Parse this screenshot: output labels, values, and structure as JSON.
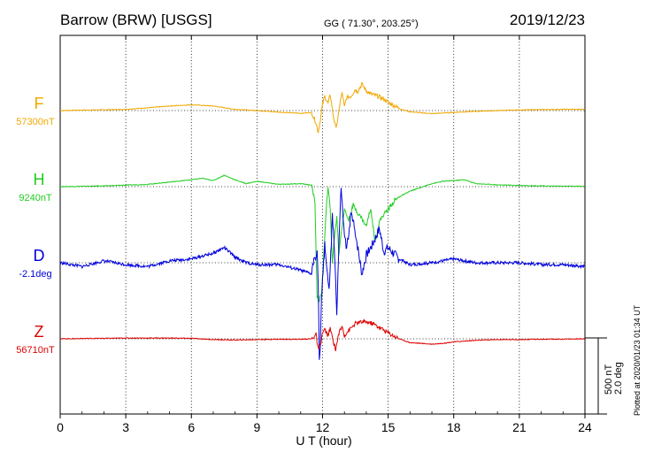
{
  "chart_data": {
    "type": "line",
    "title": "Barrow (BRW)  [USGS]",
    "coordinates": "GG ( 71.30°, 203.25°)",
    "date": "2019/12/23",
    "xlabel": "U T (hour)",
    "xlim": [
      0,
      24
    ],
    "xticks": [
      0,
      3,
      6,
      9,
      12,
      15,
      18,
      21,
      24
    ],
    "xtick_labels": [
      "0",
      "3",
      "6",
      "9",
      "12",
      "15",
      "18",
      "21",
      "24"
    ],
    "grid": true,
    "scale": {
      "line1": "500 nT",
      "line2": "2.0 deg"
    },
    "plotted_note": "Plotted at 2020/01/23 01:34 UT",
    "series": [
      {
        "name": "F",
        "baseline_label": "57300nT",
        "color": "#f0a800",
        "unit": "nT",
        "points": [
          [
            0.0,
            0
          ],
          [
            1.0,
            3
          ],
          [
            2.0,
            5
          ],
          [
            3.0,
            8
          ],
          [
            4.0,
            18
          ],
          [
            5.0,
            30
          ],
          [
            6.0,
            38
          ],
          [
            7.0,
            30
          ],
          [
            8.0,
            8
          ],
          [
            9.0,
            0
          ],
          [
            10.0,
            -10
          ],
          [
            11.0,
            -18
          ],
          [
            11.5,
            -12
          ],
          [
            11.7,
            -80
          ],
          [
            11.8,
            -140
          ],
          [
            11.9,
            -60
          ],
          [
            12.0,
            40
          ],
          [
            12.1,
            95
          ],
          [
            12.25,
            45
          ],
          [
            12.35,
            105
          ],
          [
            12.5,
            -40
          ],
          [
            12.6,
            -110
          ],
          [
            12.7,
            -60
          ],
          [
            12.8,
            55
          ],
          [
            12.9,
            115
          ],
          [
            13.0,
            20
          ],
          [
            13.1,
            85
          ],
          [
            13.3,
            95
          ],
          [
            13.5,
            140
          ],
          [
            13.6,
            125
          ],
          [
            13.8,
            175
          ],
          [
            14.0,
            130
          ],
          [
            14.2,
            110
          ],
          [
            14.4,
            100
          ],
          [
            14.6,
            90
          ],
          [
            14.8,
            75
          ],
          [
            15.0,
            55
          ],
          [
            15.3,
            30
          ],
          [
            15.6,
            8
          ],
          [
            16.0,
            -8
          ],
          [
            17.0,
            -20
          ],
          [
            18.0,
            -12
          ],
          [
            19.0,
            -5
          ],
          [
            20.0,
            0
          ],
          [
            21.0,
            4
          ],
          [
            22.0,
            6
          ],
          [
            23.0,
            8
          ],
          [
            24.0,
            8
          ]
        ]
      },
      {
        "name": "H",
        "baseline_label": "9240nT",
        "color": "#22cc22",
        "unit": "nT",
        "points": [
          [
            0.0,
            0
          ],
          [
            1.0,
            2
          ],
          [
            2.0,
            5
          ],
          [
            3.0,
            10
          ],
          [
            4.0,
            15
          ],
          [
            5.0,
            30
          ],
          [
            6.0,
            45
          ],
          [
            6.5,
            55
          ],
          [
            7.0,
            40
          ],
          [
            7.5,
            75
          ],
          [
            8.0,
            45
          ],
          [
            8.5,
            20
          ],
          [
            9.0,
            35
          ],
          [
            10.0,
            15
          ],
          [
            11.0,
            20
          ],
          [
            11.5,
            10
          ],
          [
            11.65,
            -100
          ],
          [
            11.75,
            -720
          ],
          [
            11.85,
            -760
          ],
          [
            11.95,
            -700
          ],
          [
            12.05,
            -460
          ],
          [
            12.15,
            -200
          ],
          [
            12.25,
            10
          ],
          [
            12.35,
            -150
          ],
          [
            12.45,
            -500
          ],
          [
            12.55,
            -320
          ],
          [
            12.65,
            -200
          ],
          [
            12.75,
            -440
          ],
          [
            12.85,
            -300
          ],
          [
            13.0,
            -150
          ],
          [
            13.2,
            -220
          ],
          [
            13.4,
            -120
          ],
          [
            13.6,
            -170
          ],
          [
            13.8,
            -210
          ],
          [
            14.0,
            -260
          ],
          [
            14.2,
            -140
          ],
          [
            14.4,
            -360
          ],
          [
            14.6,
            -230
          ],
          [
            14.8,
            -180
          ],
          [
            15.0,
            -150
          ],
          [
            15.3,
            -90
          ],
          [
            15.6,
            -60
          ],
          [
            16.0,
            -30
          ],
          [
            16.5,
            -5
          ],
          [
            17.0,
            20
          ],
          [
            17.5,
            35
          ],
          [
            18.0,
            40
          ],
          [
            18.5,
            45
          ],
          [
            19.0,
            20
          ],
          [
            20.0,
            12
          ],
          [
            21.0,
            8
          ],
          [
            22.0,
            5
          ],
          [
            23.0,
            3
          ],
          [
            24.0,
            2
          ]
        ]
      },
      {
        "name": "D",
        "baseline_label": "-2.1deg",
        "color": "#0000dd",
        "unit": "deg",
        "points": [
          [
            0.0,
            0
          ],
          [
            1.0,
            -0.1
          ],
          [
            2.0,
            0.05
          ],
          [
            3.0,
            -0.05
          ],
          [
            4.0,
            -0.1
          ],
          [
            5.0,
            0.05
          ],
          [
            6.0,
            0.1
          ],
          [
            7.0,
            0.25
          ],
          [
            7.5,
            0.4
          ],
          [
            8.0,
            0.15
          ],
          [
            8.5,
            0.0
          ],
          [
            9.0,
            -0.05
          ],
          [
            10.0,
            -0.05
          ],
          [
            11.0,
            -0.2
          ],
          [
            11.5,
            -0.3
          ],
          [
            11.6,
            0.1
          ],
          [
            11.75,
            0.3
          ],
          [
            11.8,
            -0.5
          ],
          [
            11.85,
            -2.5
          ],
          [
            11.9,
            -2.3
          ],
          [
            11.95,
            -1.0
          ],
          [
            12.1,
            0.5
          ],
          [
            12.3,
            -0.8
          ],
          [
            12.45,
            1.2
          ],
          [
            12.55,
            0.3
          ],
          [
            12.65,
            -1.3
          ],
          [
            12.75,
            0.5
          ],
          [
            12.85,
            2.0
          ],
          [
            12.95,
            1.0
          ],
          [
            13.1,
            0.3
          ],
          [
            13.3,
            1.3
          ],
          [
            13.5,
            0.8
          ],
          [
            13.8,
            -0.3
          ],
          [
            14.0,
            0.2
          ],
          [
            14.3,
            0.5
          ],
          [
            14.6,
            0.9
          ],
          [
            14.8,
            0.3
          ],
          [
            15.0,
            0.4
          ],
          [
            15.5,
            0.1
          ],
          [
            16.0,
            -0.05
          ],
          [
            17.0,
            0.0
          ],
          [
            18.0,
            0.1
          ],
          [
            19.0,
            0.0
          ],
          [
            20.0,
            0.0
          ],
          [
            21.0,
            0.0
          ],
          [
            22.0,
            -0.05
          ],
          [
            23.0,
            -0.05
          ],
          [
            24.0,
            -0.1
          ]
        ]
      },
      {
        "name": "Z",
        "baseline_label": "56710nT",
        "color": "#dd0000",
        "unit": "nT",
        "points": [
          [
            0.0,
            0
          ],
          [
            1.0,
            2
          ],
          [
            2.0,
            3
          ],
          [
            3.0,
            5
          ],
          [
            4.0,
            5
          ],
          [
            5.0,
            5
          ],
          [
            6.0,
            3
          ],
          [
            7.0,
            -5
          ],
          [
            8.0,
            -8
          ],
          [
            9.0,
            -5
          ],
          [
            10.0,
            -3
          ],
          [
            11.0,
            -3
          ],
          [
            11.5,
            0
          ],
          [
            11.7,
            30
          ],
          [
            11.8,
            -70
          ],
          [
            11.9,
            -40
          ],
          [
            12.0,
            40
          ],
          [
            12.1,
            60
          ],
          [
            12.25,
            20
          ],
          [
            12.35,
            65
          ],
          [
            12.5,
            -20
          ],
          [
            12.6,
            -70
          ],
          [
            12.75,
            40
          ],
          [
            12.9,
            80
          ],
          [
            13.0,
            20
          ],
          [
            13.1,
            40
          ],
          [
            13.3,
            70
          ],
          [
            13.5,
            100
          ],
          [
            13.8,
            110
          ],
          [
            14.0,
            110
          ],
          [
            14.3,
            100
          ],
          [
            14.6,
            75
          ],
          [
            15.0,
            40
          ],
          [
            15.3,
            15
          ],
          [
            15.6,
            -5
          ],
          [
            16.0,
            -25
          ],
          [
            16.5,
            -30
          ],
          [
            17.0,
            -35
          ],
          [
            17.5,
            -30
          ],
          [
            18.0,
            -20
          ],
          [
            19.0,
            -10
          ],
          [
            20.0,
            -5
          ],
          [
            21.0,
            -5
          ],
          [
            22.0,
            -3
          ],
          [
            23.0,
            -2
          ],
          [
            24.0,
            0
          ]
        ]
      }
    ]
  }
}
